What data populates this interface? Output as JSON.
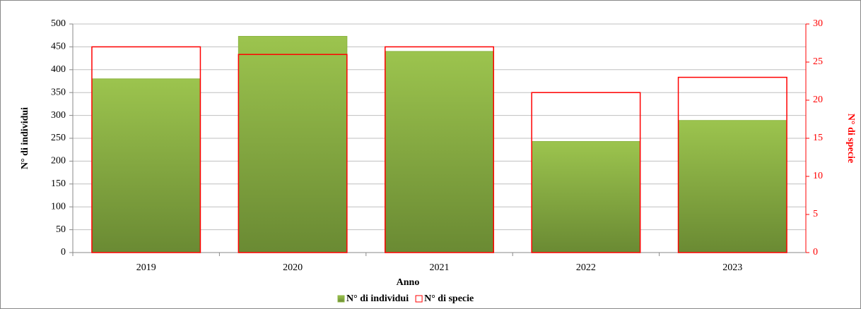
{
  "chart_data": {
    "type": "bar",
    "x_label": "Anno",
    "y_label": "N° di individui",
    "y2_label": "N° di specie",
    "categories": [
      "2019",
      "2020",
      "2021",
      "2022",
      "2023"
    ],
    "series": [
      {
        "name": "N° di individui",
        "color": "#8db543",
        "values": [
          380,
          473,
          440,
          243,
          289
        ]
      },
      {
        "name": "N° di specie",
        "color": "#ff0000",
        "axis": "y2",
        "values": [
          27,
          26,
          27,
          21,
          23
        ]
      }
    ],
    "ylim": [
      0,
      500
    ],
    "yticks": [
      0,
      50,
      100,
      150,
      200,
      250,
      300,
      350,
      400,
      450,
      500
    ],
    "y2lim": [
      0,
      30
    ],
    "y2ticks": [
      0,
      5,
      10,
      15,
      20,
      25,
      30
    ],
    "grid": true,
    "legend": "bottom"
  }
}
